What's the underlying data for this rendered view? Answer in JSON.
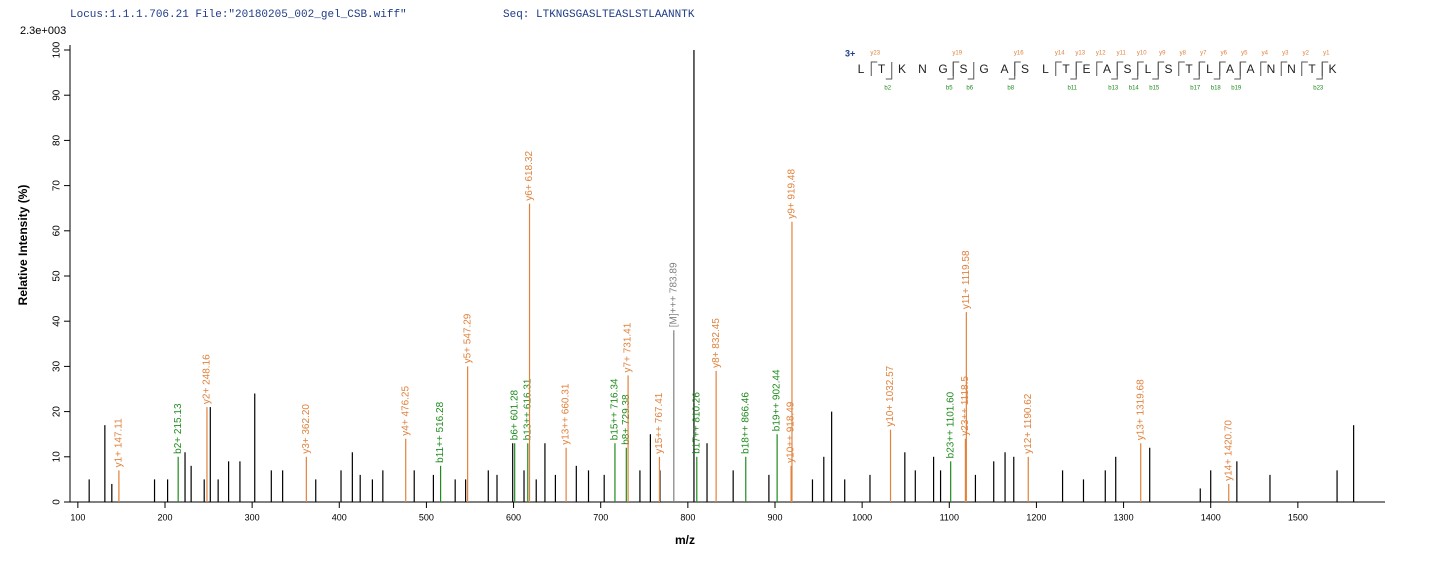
{
  "chart_data": {
    "type": "stem",
    "header": "Locus:1.1.1.706.21 File:\"20180205_002_gel_CSB.wiff\"",
    "sequence_label": "Seq: LTKNGSGASLTEASLSTLAANNTK",
    "scale_label": "2.3e+003",
    "x_label": "m/z",
    "y_label": "Relative  Intensity (%)",
    "xlim": [
      91,
      1600
    ],
    "ylim": [
      0,
      100
    ],
    "xticks": [
      100,
      200,
      300,
      400,
      500,
      600,
      700,
      800,
      900,
      1000,
      1100,
      1200,
      1300,
      1400,
      1500
    ],
    "yticks": [
      0,
      10,
      20,
      30,
      40,
      50,
      60,
      70,
      80,
      90,
      100
    ],
    "peaks": {
      "color": "#000000",
      "x": [
        113,
        131,
        139,
        188,
        203,
        223,
        230,
        245,
        252,
        261,
        273,
        286,
        303,
        322,
        335,
        373,
        402,
        415,
        424,
        438,
        450,
        486,
        508,
        533,
        545,
        571,
        581,
        599,
        612,
        626,
        636,
        648,
        672,
        686,
        704,
        745,
        757,
        768,
        807,
        822,
        852,
        893,
        943,
        956,
        965,
        980,
        1009,
        1049,
        1061,
        1082,
        1090,
        1130,
        1151,
        1164,
        1174,
        1230,
        1254,
        1279,
        1291,
        1330,
        1388,
        1400,
        1430,
        1468,
        1545,
        1564
      ],
      "values": [
        5,
        17,
        4,
        5,
        5,
        11,
        8,
        5,
        21,
        5,
        9,
        9,
        24,
        7,
        7,
        5,
        7,
        11,
        6,
        5,
        7,
        7,
        6,
        5,
        5,
        7,
        6,
        13,
        7,
        5,
        13,
        6,
        8,
        7,
        6,
        7,
        15,
        7,
        100,
        13,
        7,
        6,
        5,
        10,
        20,
        5,
        6,
        11,
        7,
        10,
        7,
        6,
        9,
        11,
        10,
        7,
        5,
        7,
        10,
        12,
        3,
        7,
        9,
        6,
        7,
        17
      ]
    },
    "annotations": [
      {
        "label": "y1+ 147.11",
        "x": 147.11,
        "value": 7,
        "color": "#e0823d"
      },
      {
        "label": "b2+ 215.13",
        "x": 215.13,
        "value": 10,
        "color": "#1e8c1e"
      },
      {
        "label": "y2+ 248.16",
        "x": 248.16,
        "value": 21,
        "color": "#e0823d"
      },
      {
        "label": "y3+ 362.20",
        "x": 362.2,
        "value": 10,
        "color": "#e0823d"
      },
      {
        "label": "y4+ 476.25",
        "x": 476.25,
        "value": 14,
        "color": "#e0823d"
      },
      {
        "label": "b11++ 516.28",
        "x": 516.28,
        "value": 8,
        "color": "#1e8c1e"
      },
      {
        "label": "y5+ 547.29",
        "x": 547.29,
        "value": 30,
        "color": "#e0823d"
      },
      {
        "label": "b6+ 601.28",
        "x": 601.28,
        "value": 13,
        "color": "#1e8c1e"
      },
      {
        "label": "b13++ 616.31",
        "x": 616.31,
        "value": 13,
        "color": "#1e8c1e"
      },
      {
        "label": "y6+ 618.32",
        "x": 618.32,
        "value": 66,
        "color": "#e0823d"
      },
      {
        "label": "y13++ 660.31",
        "x": 660.31,
        "value": 12,
        "color": "#e0823d"
      },
      {
        "label": "b15++ 716.34",
        "x": 716.34,
        "value": 13,
        "color": "#1e8c1e"
      },
      {
        "label": "b8+ 729.38",
        "x": 729.38,
        "value": 12,
        "color": "#1e8c1e"
      },
      {
        "label": "y7+ 731.41",
        "x": 731.41,
        "value": 28,
        "color": "#e0823d"
      },
      {
        "label": "y15++ 767.41",
        "x": 767.41,
        "value": 10,
        "color": "#e0823d"
      },
      {
        "label": "[M]+++ 783.89",
        "x": 783.89,
        "value": 38,
        "color": "#808080"
      },
      {
        "label": "b17++ 810.26",
        "x": 810.26,
        "value": 10,
        "color": "#1e8c1e"
      },
      {
        "label": "y8+ 832.45",
        "x": 832.45,
        "value": 29,
        "color": "#e0823d"
      },
      {
        "label": "b18++ 866.46",
        "x": 866.46,
        "value": 10,
        "color": "#1e8c1e"
      },
      {
        "label": "b19++ 902.44",
        "x": 902.44,
        "value": 15,
        "color": "#1e8c1e"
      },
      {
        "label": "y10++ 918.49",
        "x": 918.49,
        "value": 8,
        "color": "#e0823d"
      },
      {
        "label": "y9+ 919.48",
        "x": 919.48,
        "value": 62,
        "color": "#e0823d"
      },
      {
        "label": "y10+ 1032.57",
        "x": 1032.57,
        "value": 16,
        "color": "#e0823d"
      },
      {
        "label": "b23++ 1101.60",
        "x": 1101.6,
        "value": 9,
        "color": "#1e8c1e"
      },
      {
        "label": "y23++ 1118.5",
        "x": 1118.5,
        "value": 14,
        "color": "#e0823d"
      },
      {
        "label": "y11+ 1119.58",
        "x": 1119.58,
        "value": 42,
        "color": "#e0823d"
      },
      {
        "label": "y12+ 1190.62",
        "x": 1190.62,
        "value": 10,
        "color": "#e0823d"
      },
      {
        "label": "y13+ 1319.68",
        "x": 1319.68,
        "value": 13,
        "color": "#e0823d"
      },
      {
        "label": "y14+ 1420.70",
        "x": 1420.7,
        "value": 4,
        "color": "#e0823d"
      }
    ],
    "fragment_map": {
      "charge": "3+",
      "residues": [
        "L",
        "T",
        "K",
        "N",
        "G",
        "S",
        "G",
        "A",
        "S",
        "L",
        "T",
        "E",
        "A",
        "S",
        "L",
        "S",
        "T",
        "L",
        "A",
        "A",
        "N",
        "N",
        "T",
        "K"
      ],
      "y_breaks": [
        "y23",
        null,
        null,
        null,
        "y19",
        null,
        null,
        "y16",
        null,
        "y14",
        "y13",
        "y12",
        "y11",
        "y10",
        "y9",
        "y8",
        "y7",
        "y6",
        "y5",
        "y4",
        "y3",
        "y2",
        "y1"
      ],
      "b_breaks": [
        null,
        "b2",
        null,
        null,
        "b5",
        "b6",
        null,
        "b8",
        null,
        null,
        "b11",
        null,
        "b13",
        "b14",
        "b15",
        null,
        "b17",
        "b18",
        "b19",
        null,
        null,
        null,
        "b23"
      ],
      "y_color": "#e0823d",
      "b_color": "#1e8c1e"
    }
  }
}
